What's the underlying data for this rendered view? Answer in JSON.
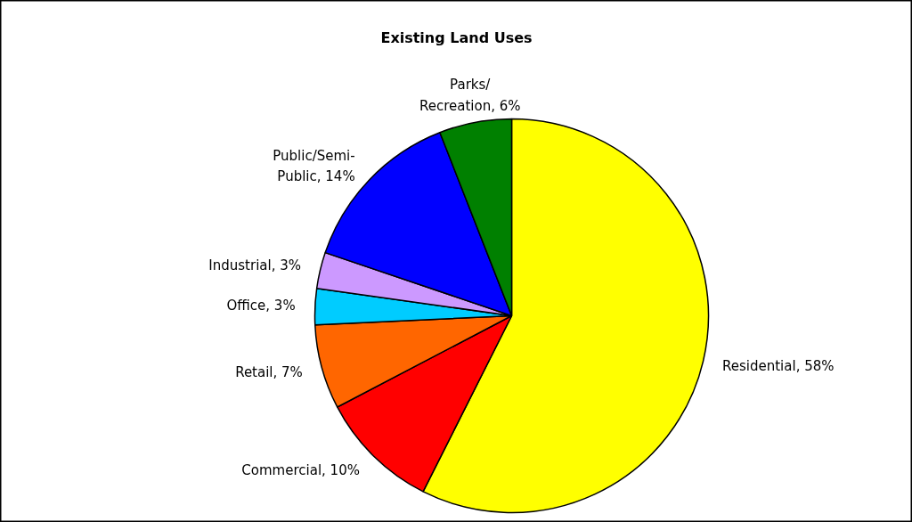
{
  "chart_data": {
    "type": "pie",
    "title": "Existing Land Uses",
    "categories": [
      "Residential",
      "Commercial",
      "Retail",
      "Office",
      "Industrial",
      "Public/Semi-Public",
      "Parks/Recreation"
    ],
    "value_labels": [
      "58%",
      "10%",
      "7%",
      "3%",
      "3%",
      "14%",
      "6%"
    ],
    "values": [
      58,
      10,
      7,
      3,
      3,
      14,
      6
    ],
    "colors": [
      "#ffff00",
      "#ff0000",
      "#ff6600",
      "#00ccff",
      "#cc99ff",
      "#0000ff",
      "#008000"
    ],
    "data_labels": false
  }
}
